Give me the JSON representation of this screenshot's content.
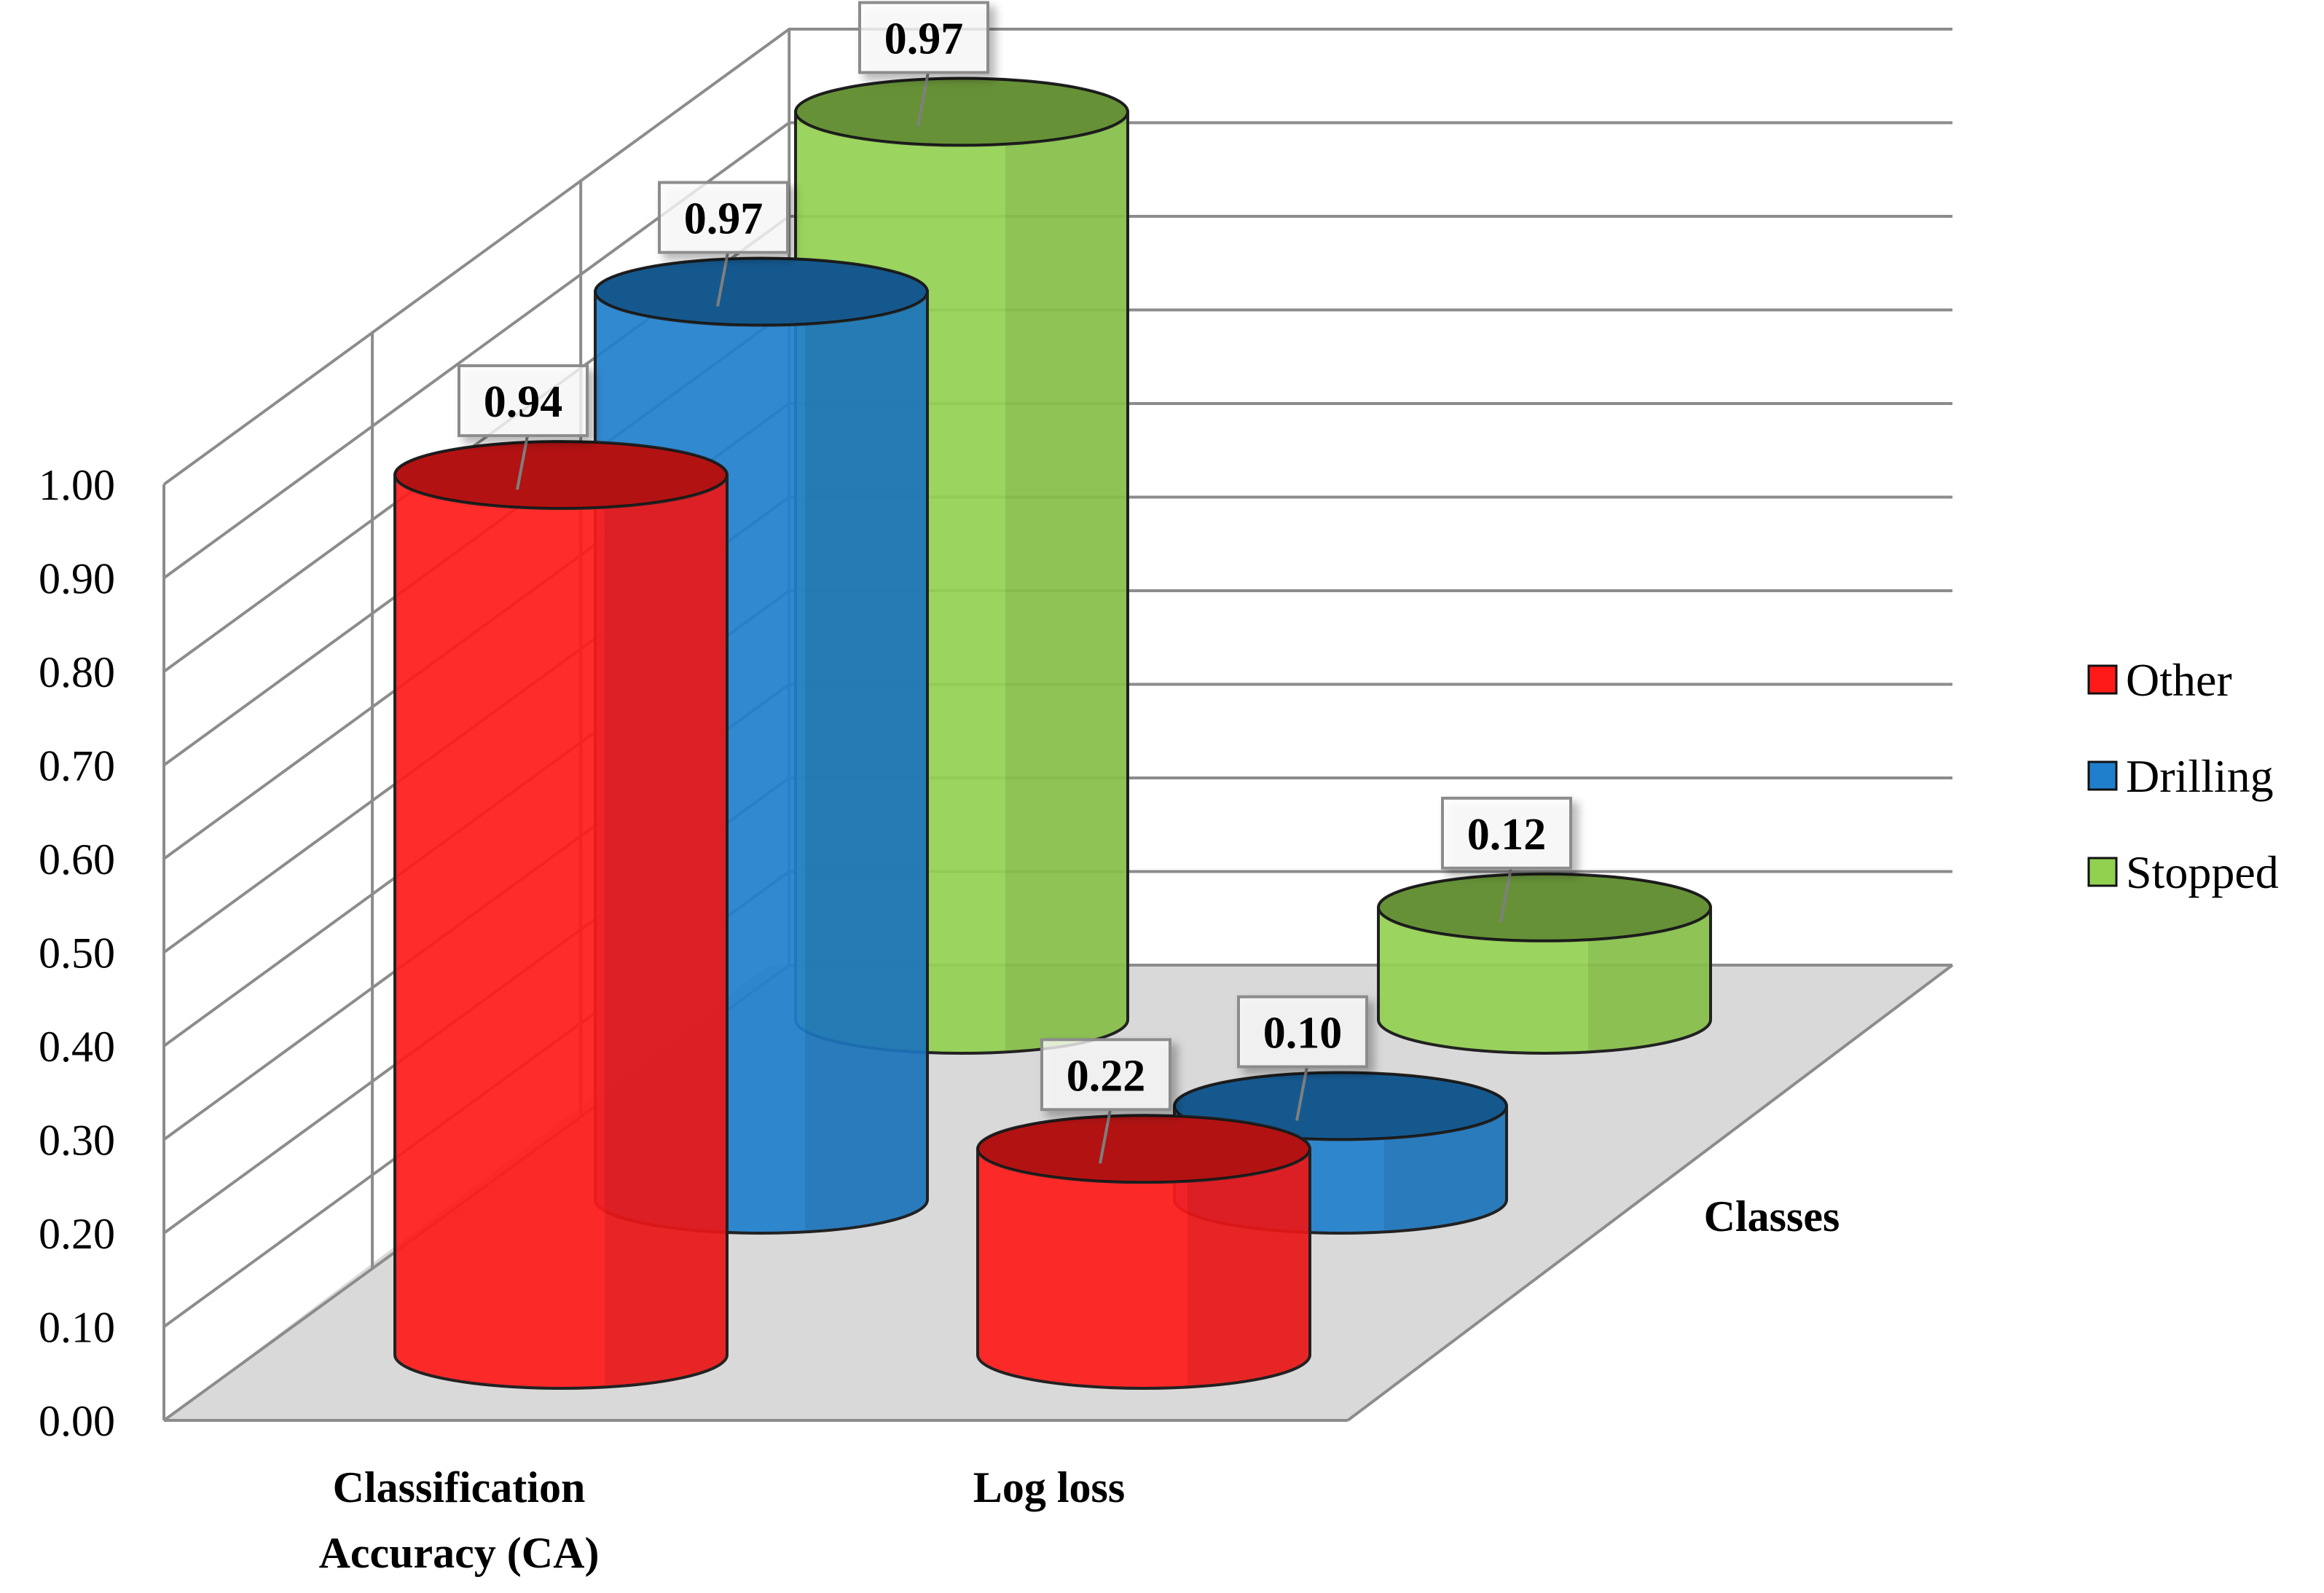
{
  "chart_data": {
    "type": "bar",
    "style": "3d-cylinder",
    "categories": [
      "Classification\nAccuracy (CA)",
      "Log loss"
    ],
    "series": [
      {
        "name": "Other",
        "color": "#ff1a1a",
        "values": [
          0.94,
          0.22
        ]
      },
      {
        "name": "Drilling",
        "color": "#1f7fcc",
        "values": [
          0.97,
          0.1
        ]
      },
      {
        "name": "Stopped",
        "color": "#92d050",
        "values": [
          0.97,
          0.12
        ]
      }
    ],
    "data_labels": [
      [
        "0.94",
        "0.22"
      ],
      [
        "0.97",
        "0.10"
      ],
      [
        "0.97",
        "0.12"
      ]
    ],
    "y_ticks": [
      "0.00",
      "0.10",
      "0.20",
      "0.30",
      "0.40",
      "0.50",
      "0.60",
      "0.70",
      "0.80",
      "0.90",
      "1.00"
    ],
    "ylim": [
      0,
      1.0
    ],
    "depth_axis_label": "Classes",
    "legend_position": "right",
    "grid": true
  }
}
